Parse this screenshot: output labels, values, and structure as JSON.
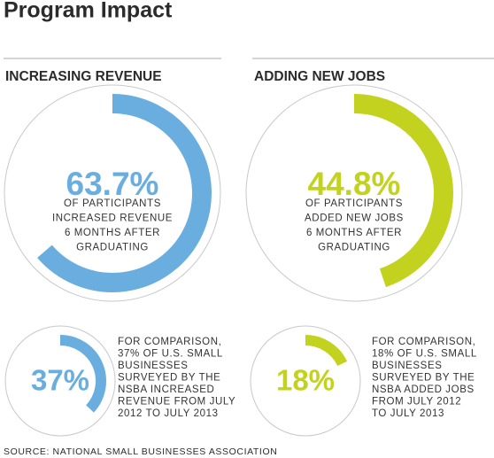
{
  "title": "Program Impact",
  "sections": [
    {
      "heading": "INCREASING REVENUE"
    },
    {
      "heading": "ADDING NEW JOBS"
    }
  ],
  "chart_data": [
    {
      "type": "gauge",
      "values": [
        63.7
      ],
      "value_labels": [
        "63.7%"
      ],
      "color": "#6aaee0",
      "caption_lines": [
        "OF PARTICIPANTS",
        "INCREASED REVENUE",
        "6 MONTHS AFTER",
        "GRADUATING"
      ]
    },
    {
      "type": "gauge",
      "values": [
        44.8
      ],
      "value_labels": [
        "44.8%"
      ],
      "color": "#c3d21e",
      "caption_lines": [
        "OF PARTICIPANTS",
        "ADDED NEW JOBS",
        "6 MONTHS AFTER",
        "GRADUATING"
      ]
    },
    {
      "type": "gauge",
      "values": [
        37
      ],
      "value_labels": [
        "37%"
      ],
      "color": "#6aaee0",
      "caption_lines": [
        "FOR COMPARISON,",
        "37% OF U.S. SMALL",
        "BUSINESSES",
        "SURVEYED BY THE",
        "NSBA INCREASED",
        "REVENUE FROM JULY",
        "2012 TO JULY 2013"
      ]
    },
    {
      "type": "gauge",
      "values": [
        18
      ],
      "value_labels": [
        "18%"
      ],
      "color": "#c3d21e",
      "caption_lines": [
        "FOR COMPARISON,",
        "18% OF U.S. SMALL",
        "BUSINESSES",
        "SURVEYED BY THE",
        "NSBA ADDED JOBS",
        "FROM JULY 2012",
        "TO JULY 2013"
      ]
    }
  ],
  "source": "SOURCE: NATIONAL SMALL BUSINESSES ASSOCIATION"
}
